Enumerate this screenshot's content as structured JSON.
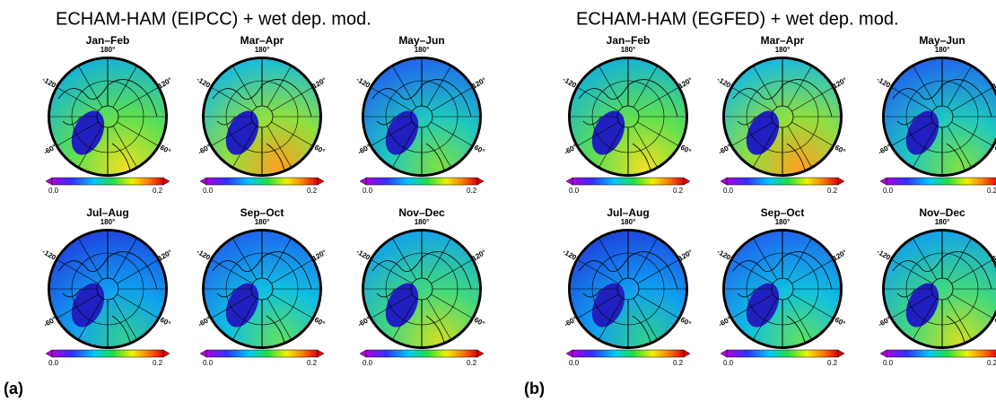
{
  "panels": [
    {
      "label": "(a)",
      "title": "ECHAM-HAM (EIPCC) + wet dep. mod."
    },
    {
      "label": "(b)",
      "title": "ECHAM-HAM (EGFED) + wet dep. mod."
    }
  ],
  "periods": [
    "Jan–Feb",
    "Mar–Apr",
    "May–Jun",
    "Jul–Aug",
    "Sep–Oct",
    "Nov–Dec"
  ],
  "longitude_labels": [
    "180°",
    "120°",
    "60°",
    "0°",
    "-60°",
    "-120°"
  ],
  "colorbar_labels": [
    "0.0",
    "0.2"
  ]
}
